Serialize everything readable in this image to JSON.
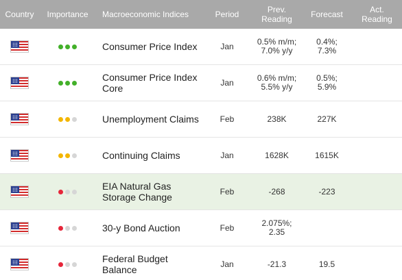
{
  "header": {
    "country": "Country",
    "importance": "Importance",
    "indices": "Macroeconomic Indices",
    "period": "Period",
    "prev": "Prev.\nReading",
    "forecast": "Forecast",
    "actual": "Act.\nReading"
  },
  "colors": {
    "high": "#43b02a",
    "medium": "#f3b600",
    "low": "#e6263a",
    "inactive": "#d6d6d6",
    "header_bg": "#a9a9a9",
    "highlight_row": "#e9f2e4"
  },
  "rows": [
    {
      "flag": "us-flag-icon",
      "importance": 3,
      "importance_level": "high",
      "indicator": "Consumer Price Index",
      "period": "Jan",
      "prev": "0.5% m/m;\n7.0% y/y",
      "forecast": "0.4%;\n7.3%",
      "actual": ""
    },
    {
      "flag": "us-flag-icon",
      "importance": 3,
      "importance_level": "high",
      "indicator": "Consumer Price Index\nCore",
      "period": "Jan",
      "prev": "0.6% m/m;\n5.5% y/y",
      "forecast": "0.5%;\n5.9%",
      "actual": ""
    },
    {
      "flag": "us-flag-icon",
      "importance": 2,
      "importance_level": "medium",
      "indicator": "Unemployment Claims",
      "period": "Feb",
      "prev": "238K",
      "forecast": "227K",
      "actual": ""
    },
    {
      "flag": "us-flag-icon",
      "importance": 2,
      "importance_level": "medium",
      "indicator": "Continuing Claims",
      "period": "Jan",
      "prev": "1628K",
      "forecast": "1615K",
      "actual": ""
    },
    {
      "flag": "us-flag-icon",
      "importance": 1,
      "importance_level": "low",
      "indicator": "EIA Natural Gas\nStorage Change",
      "period": "Feb",
      "prev": "-268",
      "forecast": "-223",
      "actual": "",
      "highlight": true
    },
    {
      "flag": "us-flag-icon",
      "importance": 1,
      "importance_level": "low",
      "indicator": "30-y Bond Auction",
      "period": "Feb",
      "prev": "2.075%;\n2.35",
      "forecast": "",
      "actual": ""
    },
    {
      "flag": "us-flag-icon",
      "importance": 1,
      "importance_level": "low",
      "indicator": "Federal Budget\nBalance",
      "period": "Jan",
      "prev": "-21.3",
      "forecast": "19.5",
      "actual": ""
    }
  ]
}
